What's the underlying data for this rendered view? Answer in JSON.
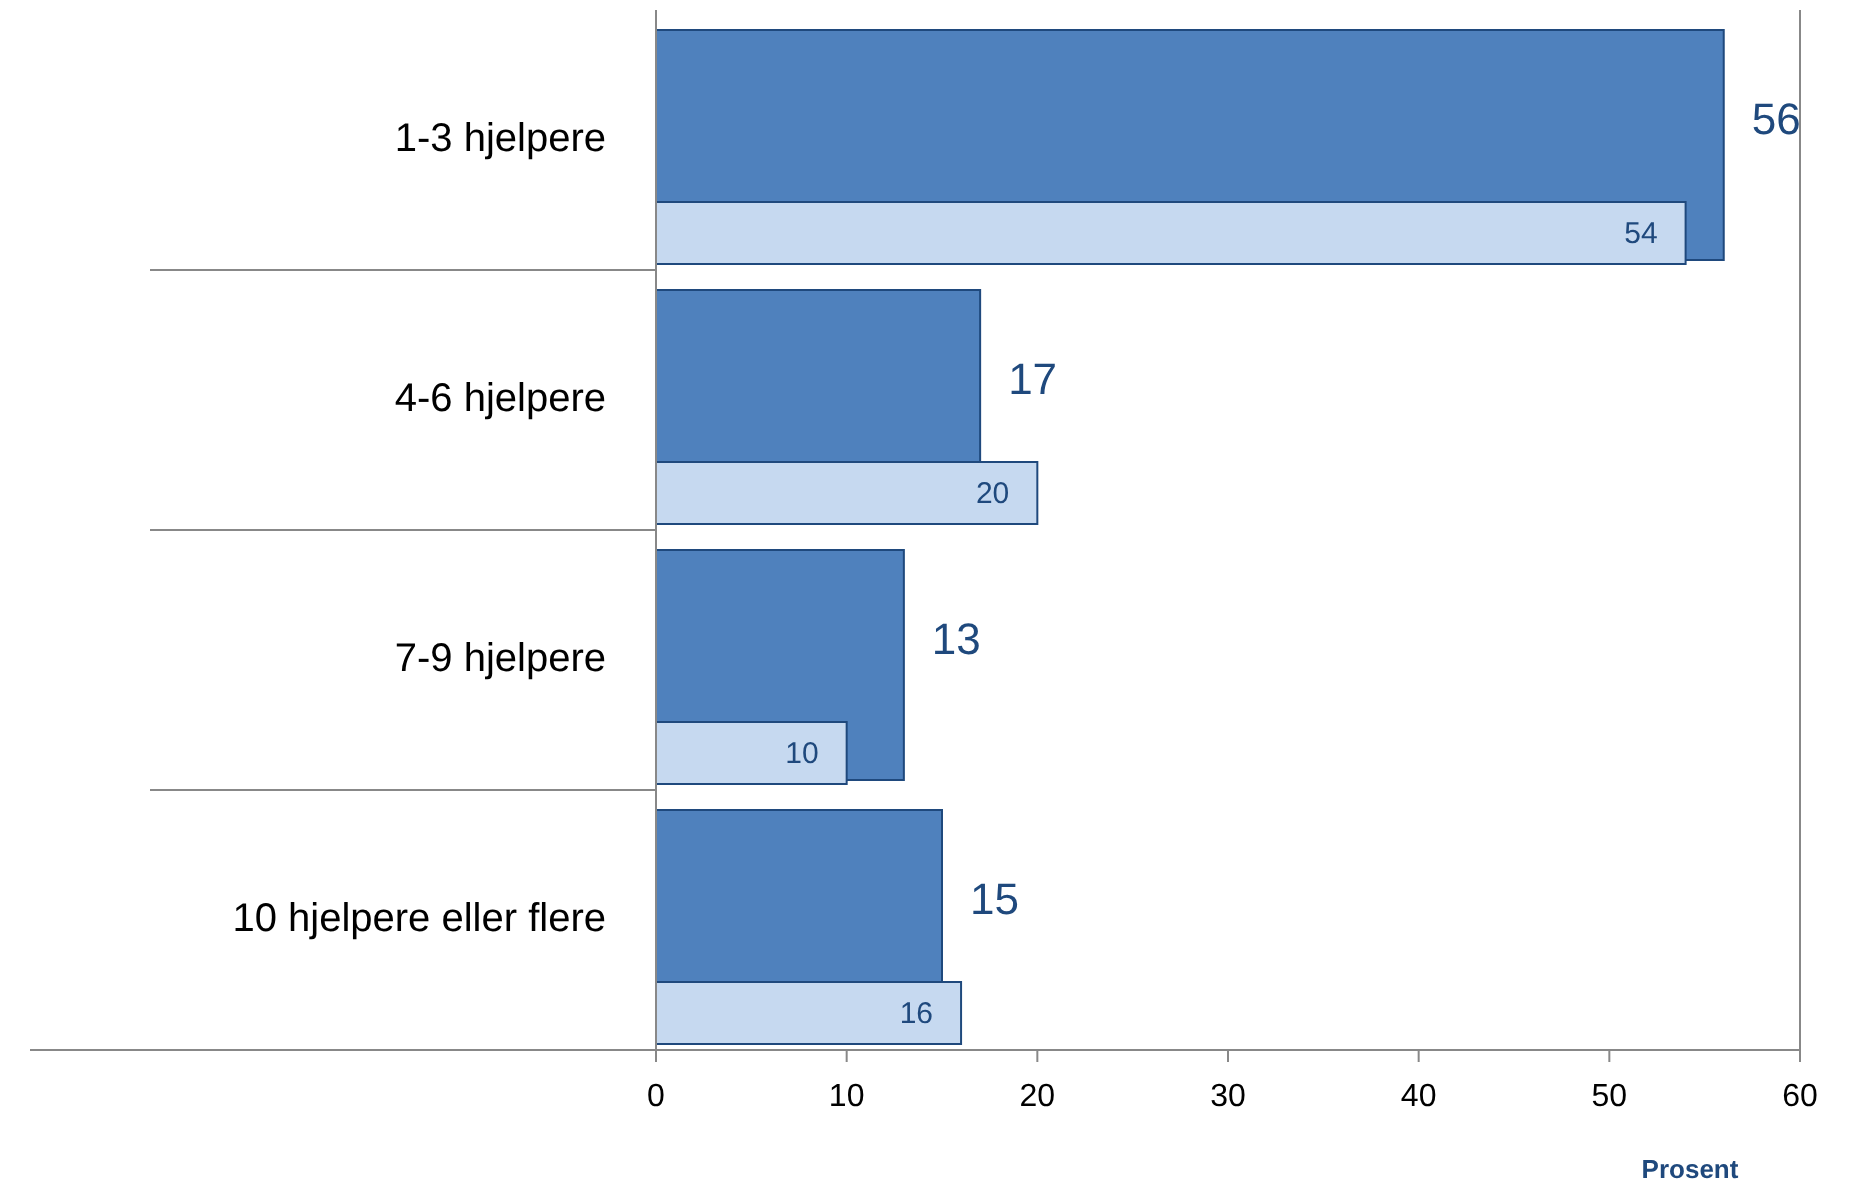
{
  "chart_data": {
    "type": "bar",
    "orientation": "horizontal",
    "categories": [
      "1-3 hjelpere",
      "4-6 hjelpere",
      "7-9 hjelpere",
      "10 hjelpere eller flere"
    ],
    "series": [
      {
        "color": "#4f81bd",
        "values": [
          56,
          17,
          13,
          15
        ]
      },
      {
        "color": "#c6d9f0",
        "values": [
          54,
          20,
          10,
          16
        ]
      }
    ],
    "xlim": [
      0,
      60
    ],
    "xticks": [
      0,
      10,
      20,
      30,
      40,
      50,
      60
    ],
    "xlabel": "Prosent",
    "data_labels": true,
    "grid": false
  }
}
